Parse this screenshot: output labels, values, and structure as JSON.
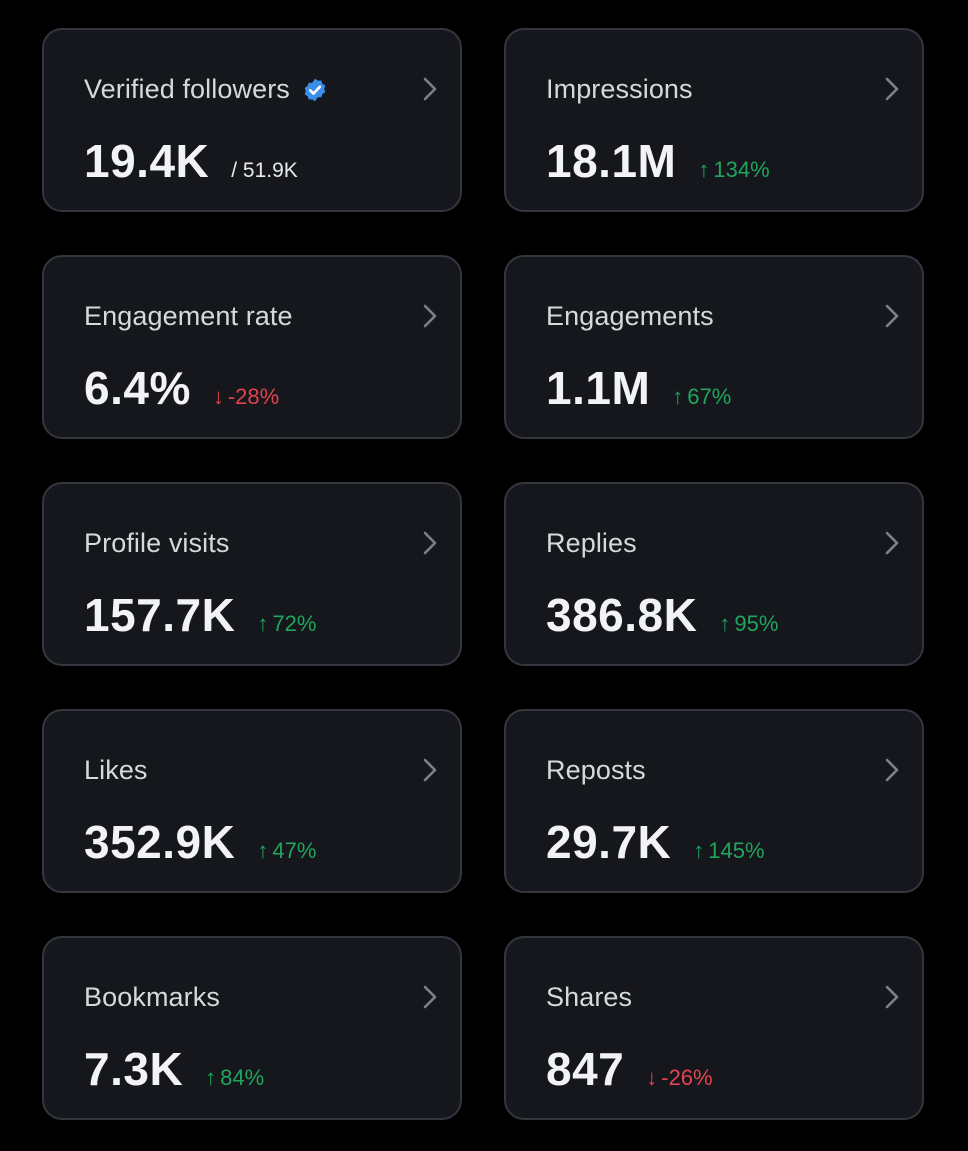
{
  "colors": {
    "background": "#000000",
    "card": "#16171c",
    "card_border": "#33363d",
    "positive": "#1fa55c",
    "negative": "#e0444f",
    "verified": "#3b8ee8"
  },
  "metrics": [
    {
      "label": "Verified followers",
      "value": "19.4K",
      "total": "/ 51.9K",
      "verified_icon": "verified-badge-icon",
      "chevron_icon": "chevron-right-icon"
    },
    {
      "label": "Impressions",
      "value": "18.1M",
      "change_arrow": "↑",
      "change": "134%",
      "direction": "up",
      "chevron_icon": "chevron-right-icon"
    },
    {
      "label": "Engagement rate",
      "value": "6.4%",
      "change_arrow": "↓",
      "change": "-28%",
      "direction": "down",
      "chevron_icon": "chevron-right-icon"
    },
    {
      "label": "Engagements",
      "value": "1.1M",
      "change_arrow": "↑",
      "change": "67%",
      "direction": "up",
      "chevron_icon": "chevron-right-icon"
    },
    {
      "label": "Profile visits",
      "value": "157.7K",
      "change_arrow": "↑",
      "change": "72%",
      "direction": "up",
      "chevron_icon": "chevron-right-icon"
    },
    {
      "label": "Replies",
      "value": "386.8K",
      "change_arrow": "↑",
      "change": "95%",
      "direction": "up",
      "chevron_icon": "chevron-right-icon"
    },
    {
      "label": "Likes",
      "value": "352.9K",
      "change_arrow": "↑",
      "change": "47%",
      "direction": "up",
      "chevron_icon": "chevron-right-icon"
    },
    {
      "label": "Reposts",
      "value": "29.7K",
      "change_arrow": "↑",
      "change": "145%",
      "direction": "up",
      "chevron_icon": "chevron-right-icon"
    },
    {
      "label": "Bookmarks",
      "value": "7.3K",
      "change_arrow": "↑",
      "change": "84%",
      "direction": "up",
      "chevron_icon": "chevron-right-icon"
    },
    {
      "label": "Shares",
      "value": "847",
      "change_arrow": "↓",
      "change": "-26%",
      "direction": "down",
      "chevron_icon": "chevron-right-icon"
    }
  ]
}
